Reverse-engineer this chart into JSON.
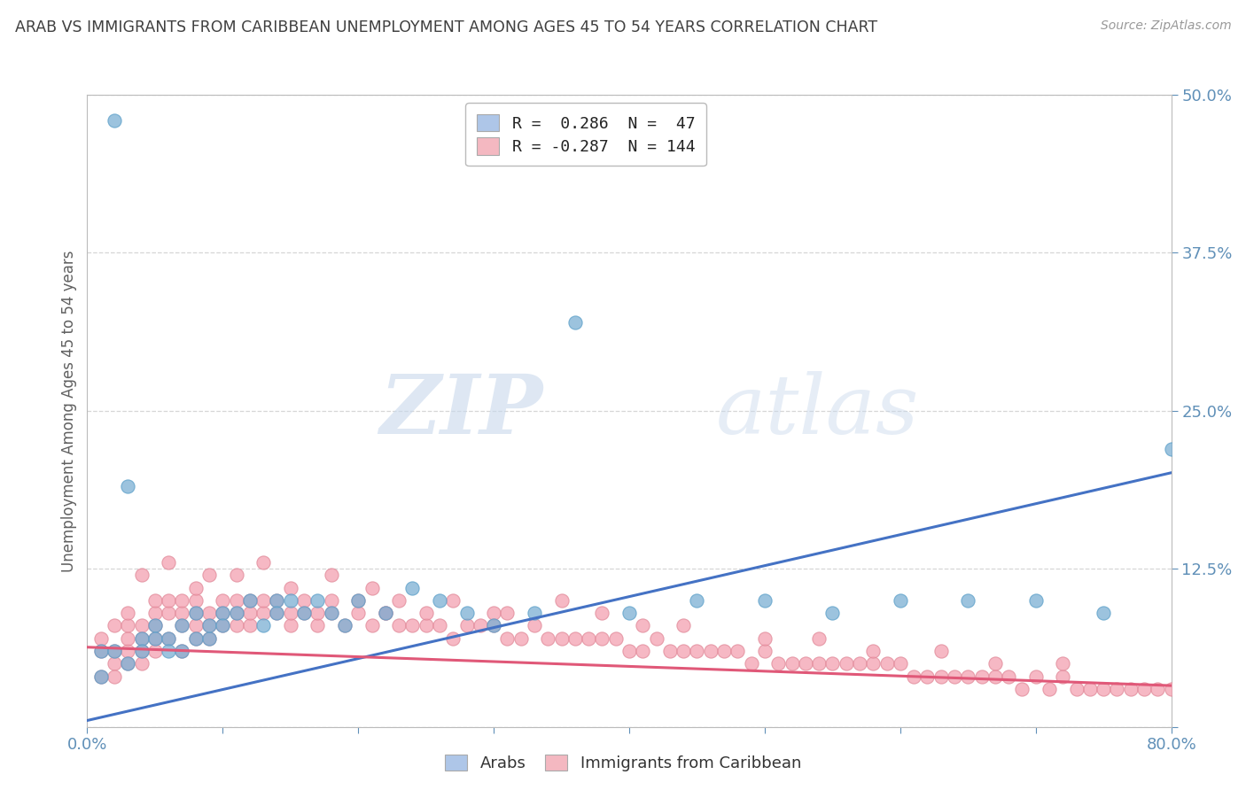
{
  "title": "ARAB VS IMMIGRANTS FROM CARIBBEAN UNEMPLOYMENT AMONG AGES 45 TO 54 YEARS CORRELATION CHART",
  "source": "Source: ZipAtlas.com",
  "ylabel": "Unemployment Among Ages 45 to 54 years",
  "watermark_zip": "ZIP",
  "watermark_atlas": "atlas",
  "xlim": [
    0.0,
    0.8
  ],
  "ylim": [
    0.0,
    0.5
  ],
  "yticks": [
    0.0,
    0.125,
    0.25,
    0.375,
    0.5
  ],
  "ytick_labels": [
    "",
    "12.5%",
    "25.0%",
    "37.5%",
    "50.0%"
  ],
  "xticks": [
    0.0,
    0.1,
    0.2,
    0.3,
    0.4,
    0.5,
    0.6,
    0.7,
    0.8
  ],
  "xtick_labels": [
    "0.0%",
    "",
    "",
    "",
    "",
    "",
    "",
    "",
    "80.0%"
  ],
  "legend_blue_label": "R =  0.286  N =  47",
  "legend_pink_label": "R = -0.287  N = 144",
  "legend_blue_color": "#aec6e8",
  "legend_pink_color": "#f4b8c1",
  "series_labels": [
    "Arabs",
    "Immigrants from Caribbean"
  ],
  "blue_color": "#7bafd4",
  "blue_edge": "#5a9fc8",
  "pink_color": "#f4a0b0",
  "pink_edge": "#e08898",
  "trendline_blue": "#4472c4",
  "trendline_pink": "#e05878",
  "background": "#ffffff",
  "grid_color": "#cccccc",
  "title_color": "#404040",
  "axis_color": "#6090b8",
  "blue_scatter_x": [
    0.02,
    0.14,
    0.03,
    0.01,
    0.01,
    0.02,
    0.03,
    0.04,
    0.04,
    0.05,
    0.05,
    0.06,
    0.06,
    0.07,
    0.07,
    0.08,
    0.08,
    0.09,
    0.09,
    0.1,
    0.1,
    0.11,
    0.12,
    0.13,
    0.14,
    0.15,
    0.16,
    0.17,
    0.18,
    0.19,
    0.2,
    0.22,
    0.24,
    0.26,
    0.28,
    0.3,
    0.33,
    0.36,
    0.4,
    0.45,
    0.5,
    0.55,
    0.6,
    0.65,
    0.7,
    0.75,
    0.8
  ],
  "blue_scatter_y": [
    0.48,
    0.1,
    0.19,
    0.04,
    0.06,
    0.06,
    0.05,
    0.07,
    0.06,
    0.08,
    0.07,
    0.07,
    0.06,
    0.08,
    0.06,
    0.09,
    0.07,
    0.07,
    0.08,
    0.09,
    0.08,
    0.09,
    0.1,
    0.08,
    0.09,
    0.1,
    0.09,
    0.1,
    0.09,
    0.08,
    0.1,
    0.09,
    0.11,
    0.1,
    0.09,
    0.08,
    0.09,
    0.32,
    0.09,
    0.1,
    0.1,
    0.09,
    0.1,
    0.1,
    0.1,
    0.09,
    0.22
  ],
  "pink_scatter_x": [
    0.01,
    0.01,
    0.01,
    0.02,
    0.02,
    0.02,
    0.02,
    0.03,
    0.03,
    0.03,
    0.03,
    0.03,
    0.04,
    0.04,
    0.04,
    0.04,
    0.05,
    0.05,
    0.05,
    0.05,
    0.05,
    0.06,
    0.06,
    0.06,
    0.07,
    0.07,
    0.07,
    0.07,
    0.08,
    0.08,
    0.08,
    0.08,
    0.09,
    0.09,
    0.09,
    0.1,
    0.1,
    0.1,
    0.11,
    0.11,
    0.11,
    0.12,
    0.12,
    0.12,
    0.13,
    0.13,
    0.14,
    0.14,
    0.15,
    0.15,
    0.16,
    0.16,
    0.17,
    0.17,
    0.18,
    0.18,
    0.19,
    0.2,
    0.2,
    0.21,
    0.22,
    0.22,
    0.23,
    0.24,
    0.25,
    0.25,
    0.26,
    0.27,
    0.28,
    0.29,
    0.3,
    0.3,
    0.31,
    0.32,
    0.33,
    0.34,
    0.35,
    0.36,
    0.37,
    0.38,
    0.39,
    0.4,
    0.41,
    0.42,
    0.43,
    0.44,
    0.45,
    0.46,
    0.47,
    0.48,
    0.49,
    0.5,
    0.51,
    0.52,
    0.53,
    0.54,
    0.55,
    0.56,
    0.57,
    0.58,
    0.59,
    0.6,
    0.61,
    0.62,
    0.63,
    0.64,
    0.65,
    0.66,
    0.67,
    0.68,
    0.69,
    0.7,
    0.71,
    0.72,
    0.73,
    0.74,
    0.75,
    0.76,
    0.77,
    0.78,
    0.79,
    0.8,
    0.04,
    0.06,
    0.08,
    0.09,
    0.11,
    0.13,
    0.15,
    0.18,
    0.21,
    0.23,
    0.27,
    0.31,
    0.35,
    0.38,
    0.41,
    0.44,
    0.5,
    0.54,
    0.58,
    0.63,
    0.67,
    0.72
  ],
  "pink_scatter_y": [
    0.06,
    0.04,
    0.07,
    0.05,
    0.06,
    0.08,
    0.04,
    0.06,
    0.07,
    0.08,
    0.05,
    0.09,
    0.06,
    0.07,
    0.08,
    0.05,
    0.07,
    0.08,
    0.09,
    0.1,
    0.06,
    0.07,
    0.09,
    0.1,
    0.08,
    0.09,
    0.1,
    0.06,
    0.08,
    0.09,
    0.1,
    0.07,
    0.08,
    0.09,
    0.07,
    0.08,
    0.09,
    0.1,
    0.08,
    0.09,
    0.1,
    0.08,
    0.09,
    0.1,
    0.09,
    0.1,
    0.09,
    0.1,
    0.08,
    0.09,
    0.09,
    0.1,
    0.08,
    0.09,
    0.09,
    0.1,
    0.08,
    0.09,
    0.1,
    0.08,
    0.09,
    0.09,
    0.08,
    0.08,
    0.08,
    0.09,
    0.08,
    0.07,
    0.08,
    0.08,
    0.08,
    0.09,
    0.07,
    0.07,
    0.08,
    0.07,
    0.07,
    0.07,
    0.07,
    0.07,
    0.07,
    0.06,
    0.06,
    0.07,
    0.06,
    0.06,
    0.06,
    0.06,
    0.06,
    0.06,
    0.05,
    0.06,
    0.05,
    0.05,
    0.05,
    0.05,
    0.05,
    0.05,
    0.05,
    0.05,
    0.05,
    0.05,
    0.04,
    0.04,
    0.04,
    0.04,
    0.04,
    0.04,
    0.04,
    0.04,
    0.03,
    0.04,
    0.03,
    0.04,
    0.03,
    0.03,
    0.03,
    0.03,
    0.03,
    0.03,
    0.03,
    0.03,
    0.12,
    0.13,
    0.11,
    0.12,
    0.12,
    0.13,
    0.11,
    0.12,
    0.11,
    0.1,
    0.1,
    0.09,
    0.1,
    0.09,
    0.08,
    0.08,
    0.07,
    0.07,
    0.06,
    0.06,
    0.05,
    0.05
  ]
}
